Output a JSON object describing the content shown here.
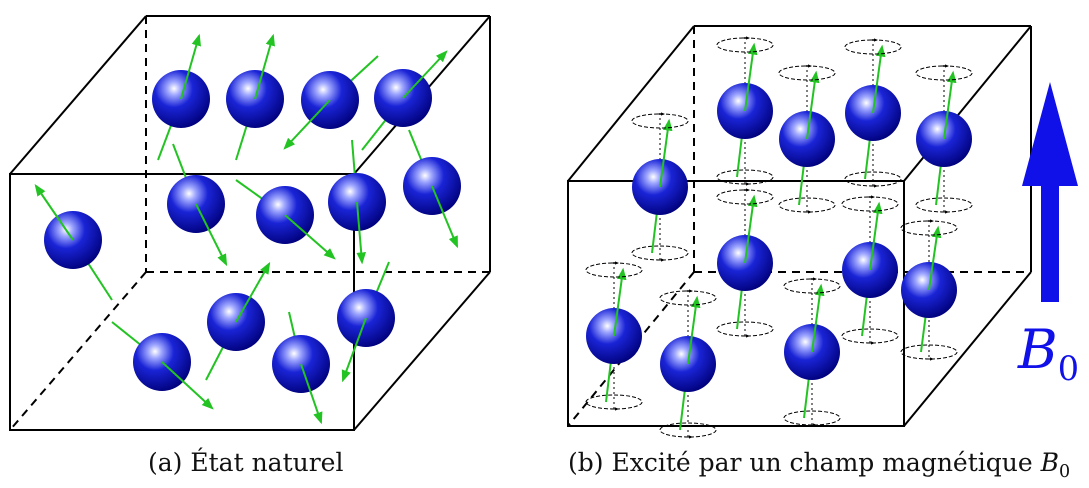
{
  "captions": {
    "a_prefix": "(a)",
    "a_text": "État naturel",
    "b_prefix": "(b)",
    "b_text": "Excité par un champ magnétique",
    "b_symbol_letter": "B",
    "b_symbol_sub": "0"
  },
  "field_label": {
    "letter": "B",
    "sub": "0"
  },
  "colors": {
    "sphere_dark": "#00007a",
    "sphere_mid": "#1a24d6",
    "sphere_light": "#ffffff",
    "spin_arrow": "#22c322",
    "field_arrow": "#1010e8",
    "edges": "#000000"
  },
  "icons": {
    "sphere": "proton-sphere-icon",
    "spin": "spin-arrow-icon",
    "precession": "precession-orbit-icon",
    "field": "magnetic-field-arrow-icon"
  }
}
